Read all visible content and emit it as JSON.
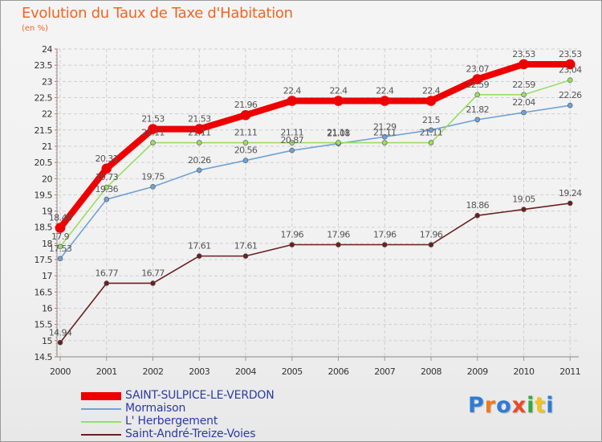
{
  "chart_data": {
    "type": "line",
    "title": "Evolution du Taux de Taxe d'Habitation",
    "subtitle": "(en %)",
    "categories": [
      "2000",
      "2001",
      "2002",
      "2003",
      "2004",
      "2005",
      "2006",
      "2007",
      "2008",
      "2009",
      "2010",
      "2011"
    ],
    "ylim": [
      14.5,
      24
    ],
    "yticks": [
      "14.5",
      "15",
      "15.5",
      "16",
      "16.5",
      "17",
      "17.5",
      "18",
      "18.5",
      "19",
      "19.5",
      "20",
      "20.5",
      "21",
      "21.5",
      "22",
      "22.5",
      "23",
      "23.5",
      "24"
    ],
    "grid": true,
    "legend_position": "bottom-left",
    "series": [
      {
        "name": "SAINT-SULPICE-LE-VERDON",
        "color": "#ee0000",
        "values": [
          18.48,
          20.31,
          21.53,
          21.53,
          21.96,
          22.4,
          22.4,
          22.4,
          22.4,
          23.07,
          23.53,
          23.53
        ],
        "labels": [
          "18.48",
          "20.31",
          "21.53",
          "21.53",
          "21.96",
          "22.4",
          "22.4",
          "22.4",
          "22.4",
          "23.07",
          "23.53",
          "23.53"
        ]
      },
      {
        "name": "Mormaison",
        "color": "#6fa2d4",
        "values": [
          17.53,
          19.36,
          19.75,
          20.26,
          20.56,
          20.87,
          21.08,
          21.29,
          21.5,
          21.82,
          22.04,
          22.26
        ],
        "labels": [
          "17.53",
          "19.36",
          "19.75",
          "20.26",
          "20.56",
          "20.87",
          "21.08",
          "21.29",
          "21.5",
          "21.82",
          "22.04",
          "22.26"
        ]
      },
      {
        "name": "L' Herbergement",
        "color": "#99dd66",
        "values": [
          17.9,
          19.73,
          21.11,
          21.11,
          21.11,
          21.11,
          21.11,
          21.11,
          21.11,
          22.59,
          22.59,
          23.04
        ],
        "labels": [
          "17.9",
          "19.73",
          "21.11",
          "21.11",
          "21.11",
          "21.11",
          "21.11",
          "21.11",
          "21.11",
          "22.59",
          "22.59",
          "23.04"
        ]
      },
      {
        "name": "Saint-André-Treize-Voies",
        "color": "#6b1f1f",
        "values": [
          14.94,
          16.77,
          16.77,
          17.61,
          17.61,
          17.96,
          17.96,
          17.96,
          17.96,
          18.86,
          19.05,
          19.24
        ],
        "labels": [
          "14.94",
          "16.77",
          "16.77",
          "17.61",
          "17.61",
          "17.96",
          "17.96",
          "17.96",
          "17.96",
          "18.86",
          "19.05",
          "19.24"
        ]
      }
    ]
  },
  "logo": {
    "text": "Proxiti",
    "colors": [
      "#2e7bd6",
      "#f07a1a",
      "#2e7bd6",
      "#e84a2a",
      "#35a844",
      "#f0c419",
      "#2e7bd6"
    ]
  }
}
